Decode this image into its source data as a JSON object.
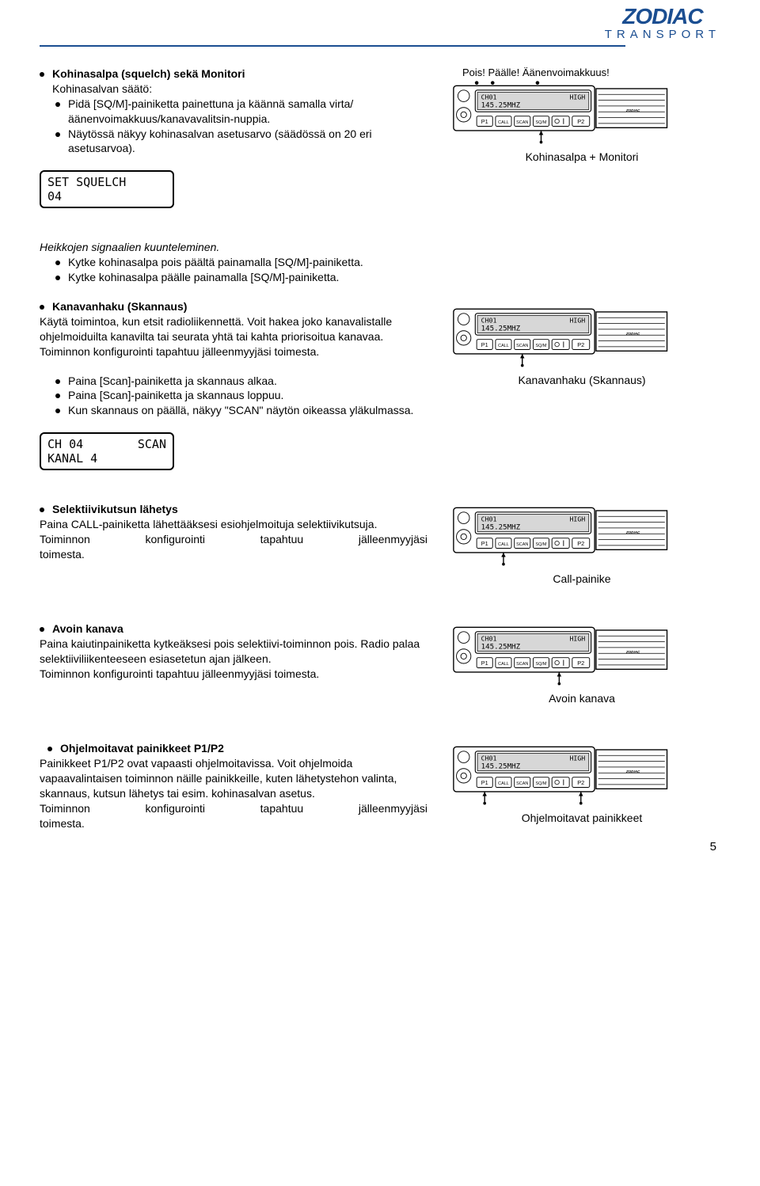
{
  "logo": {
    "main": "ZODIAC",
    "sub": "TRANSPORT"
  },
  "colors": {
    "brand": "#1b4e91",
    "text": "#000000",
    "bg": "#ffffff"
  },
  "lcd_squelch": {
    "line1": "SET SQUELCH",
    "line2": "04"
  },
  "lcd_scan": {
    "line1_left": "CH 04",
    "line1_right": "SCAN",
    "line2": "KANAL 4"
  },
  "radio_display": {
    "line1_left": "CH01",
    "line1_right": "HIGH",
    "line2": "145.25MHZ",
    "btn_p1": "P1",
    "btn_p2": "P2",
    "btn_call": "CALL",
    "btn_scan": "SCAN",
    "btn_sqm": "SQ/M",
    "brand": "ZODIAC"
  },
  "fig_labels": {
    "top_row": "Pois! Päälle! Äänenvoimakkuus!",
    "kohinasalpa": "Kohinasalpa + Monitori",
    "skannaus": "Kanavanhaku (Skannaus)",
    "call": "Call-painike",
    "avoin": "Avoin kanava",
    "ohjelm": "Ohjelmoitavat painikkeet"
  },
  "sect": {
    "s1_title": "Kohinasalpa (squelch) sekä Monitori",
    "s1_sub": "Kohinasalvan säätö:",
    "s1_b1": "Pidä [SQ/M]-painiketta painettuna ja käännä samalla virta/äänenvoimakkuus/kanavavalitsin-nuppia.",
    "s1_b2": "Näytössä näkyy kohinasalvan asetusarvo (säädössä on 20 eri asetusarvoa).",
    "s2_title": "Heikkojen signaalien kuunteleminen.",
    "s2_b1": "Kytke kohinasalpa pois päältä painamalla [SQ/M]-painiketta.",
    "s2_b2": "Kytke kohinasalpa päälle painamalla [SQ/M]-painiketta.",
    "s3_title": "Kanavanhaku (Skannaus)",
    "s3_body": "Käytä toimintoa, kun etsit radioliikennettä. Voit hakea joko kanavalistalle ohjelmoiduilta kanavilta tai seurata yhtä tai kahta priorisoitua kanavaa. Toiminnon konfigurointi tapahtuu jälleenmyyjäsi toimesta.",
    "s3_b1": "Paina [Scan]-painiketta ja skannaus alkaa.",
    "s3_b2": "Paina [Scan]-painiketta ja skannaus loppuu.",
    "s3_b3": "Kun skannaus on päällä, näkyy \"SCAN\" näytön oikeassa yläkulmassa.",
    "s4_title": "Selektiivikutsun lähetys",
    "s4_body1": "Paina CALL-painiketta lähettääksesi esiohjelmoituja selektiivikutsuja.",
    "s4_body2a": "Toiminnon",
    "s4_body2b": "konfigurointi",
    "s4_body2c": "tapahtuu",
    "s4_body2d": "jälleenmyyjäsi",
    "s4_body3": "toimesta.",
    "s5_title": "Avoin kanava",
    "s5_body": "Paina kaiutinpainiketta kytkeäksesi pois selektiivi-toiminnon pois. Radio palaa selektiiviliikenteeseen esiasetetun ajan jälkeen.\nToiminnon konfigurointi tapahtuu jälleenmyyjäsi toimesta.",
    "s6_title": "Ohjelmoitavat painikkeet P1/P2",
    "s6_body": "Painikkeet P1/P2 ovat vapaasti ohjelmoitavissa. Voit ohjelmoida vapaavalintaisen toiminnon näille painikkeille, kuten lähetystehon valinta, skannaus, kutsun lähetys tai esim. kohinasalvan asetus.",
    "s6_body2a": "Toiminnon",
    "s6_body2b": "konfigurointi",
    "s6_body2c": "tapahtuu",
    "s6_body2d": "jälleenmyyjäsi",
    "s6_body3": "toimesta."
  },
  "page_number": "5"
}
